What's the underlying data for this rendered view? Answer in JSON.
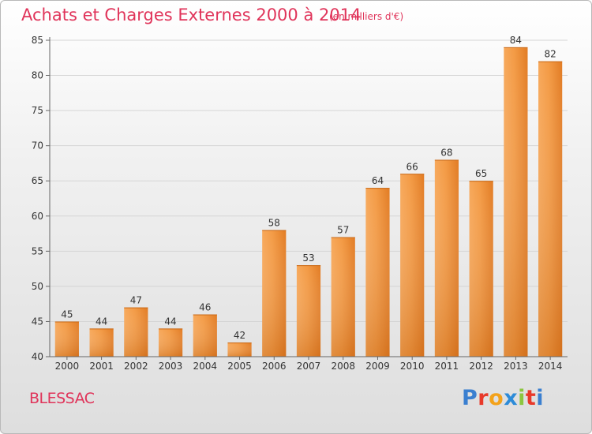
{
  "chart_data": {
    "type": "bar",
    "title": "Achats et Charges Externes 2000 à 2014",
    "subtitle": "(en milliers d'€)",
    "categories": [
      "2000",
      "2001",
      "2002",
      "2003",
      "2004",
      "2005",
      "2006",
      "2007",
      "2008",
      "2009",
      "2010",
      "2011",
      "2012",
      "2013",
      "2014"
    ],
    "values": [
      45,
      44,
      47,
      44,
      46,
      42,
      58,
      53,
      57,
      64,
      66,
      68,
      65,
      84,
      82
    ],
    "ylim": [
      40,
      85
    ],
    "yticks": [
      40,
      45,
      50,
      55,
      60,
      65,
      70,
      75,
      80,
      85
    ],
    "grid": true,
    "bar_color": "#f08a2c",
    "xlabel": "",
    "ylabel": ""
  },
  "footer": {
    "commune": "BLESSAC",
    "logo_letters": [
      "P",
      "r",
      "o",
      "x",
      "i",
      "t",
      "i"
    ],
    "logo_colors": [
      "#3a7fd0",
      "#e8392a",
      "#f3a21b",
      "#2d8bd8",
      "#8cc63f",
      "#e8392a",
      "#3a7fd0"
    ]
  },
  "colors": {
    "title": "#e0345a",
    "grid": "#d5d5d5",
    "axis": "#666666"
  }
}
